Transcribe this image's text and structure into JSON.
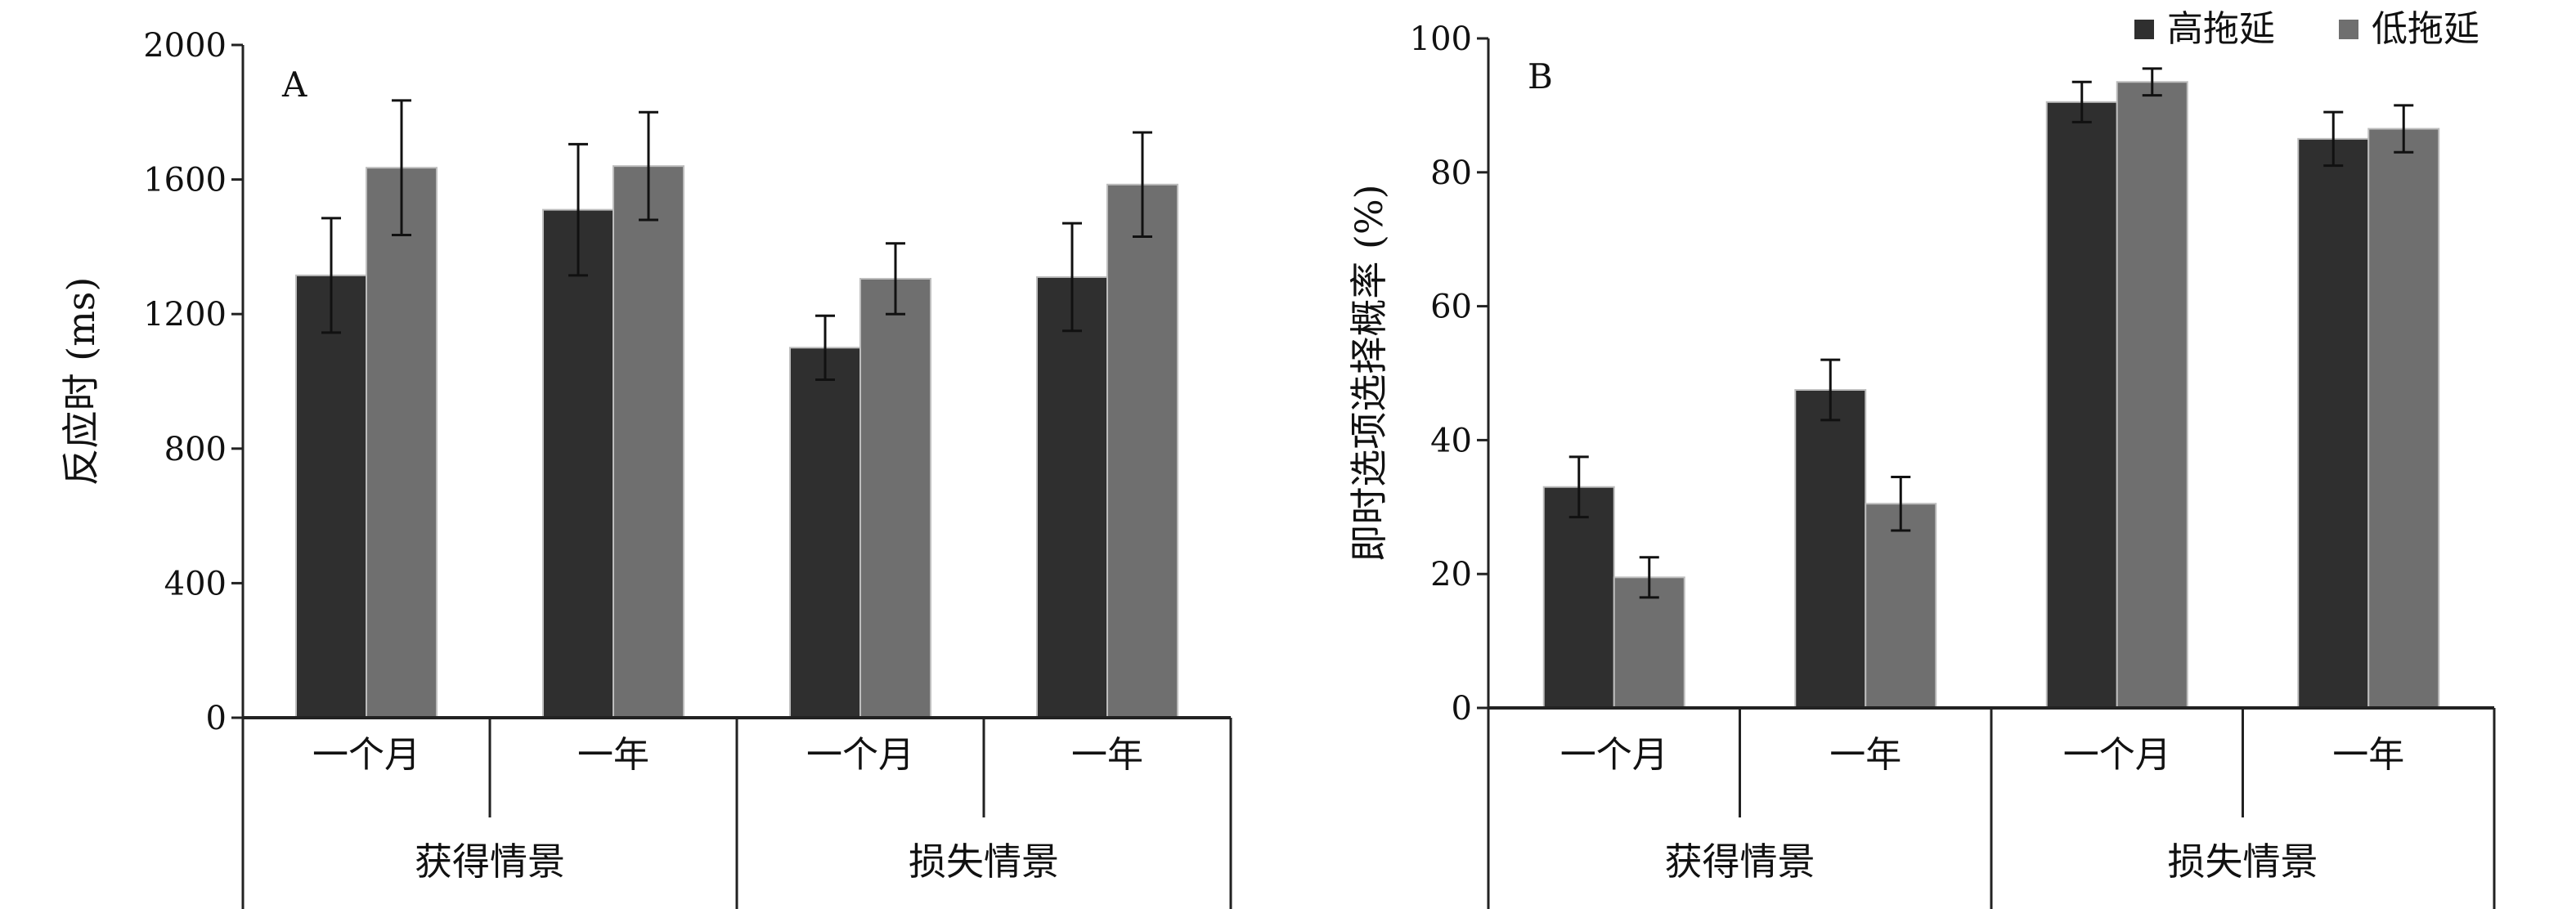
{
  "legend": {
    "position": "top-right",
    "entries": [
      {
        "label": "高拖延",
        "color": "#2f2f2f"
      },
      {
        "label": "低拖延",
        "color": "#6f6f6f"
      }
    ]
  },
  "chart_data": [
    {
      "type": "bar",
      "panel_label": "A",
      "title": "",
      "ylabel": "反应时 (ms)",
      "xlabel": "",
      "ylim": [
        0,
        2000
      ],
      "yticks": [
        0,
        400,
        800,
        1200,
        1600,
        2000
      ],
      "categories": [
        "一个月",
        "一年",
        "一个月",
        "一年"
      ],
      "groups": [
        {
          "label": "获得情景",
          "span": [
            0,
            1
          ]
        },
        {
          "label": "损失情景",
          "span": [
            2,
            3
          ]
        }
      ],
      "series": [
        {
          "name": "高拖延",
          "color": "#2f2f2f",
          "values": [
            1315,
            1510,
            1100,
            1310
          ],
          "errors": [
            170,
            195,
            95,
            160
          ]
        },
        {
          "name": "低拖延",
          "color": "#6f6f6f",
          "values": [
            1635,
            1640,
            1305,
            1585
          ],
          "errors": [
            200,
            160,
            105,
            155
          ]
        }
      ]
    },
    {
      "type": "bar",
      "panel_label": "B",
      "title": "",
      "ylabel": "即时选项选择概率 (%)",
      "xlabel": "",
      "ylim": [
        0,
        100
      ],
      "yticks": [
        0,
        20,
        40,
        60,
        80,
        100
      ],
      "categories": [
        "一个月",
        "一年",
        "一个月",
        "一年"
      ],
      "groups": [
        {
          "label": "获得情景",
          "span": [
            0,
            1
          ]
        },
        {
          "label": "损失情景",
          "span": [
            2,
            3
          ]
        }
      ],
      "series": [
        {
          "name": "高拖延",
          "color": "#2f2f2f",
          "values": [
            33,
            47.5,
            90.5,
            85
          ],
          "errors": [
            4.5,
            4.5,
            3,
            4
          ]
        },
        {
          "name": "低拖延",
          "color": "#6f6f6f",
          "values": [
            19.5,
            30.5,
            93.5,
            86.5
          ],
          "errors": [
            3,
            4,
            2,
            3.5
          ]
        }
      ]
    }
  ]
}
